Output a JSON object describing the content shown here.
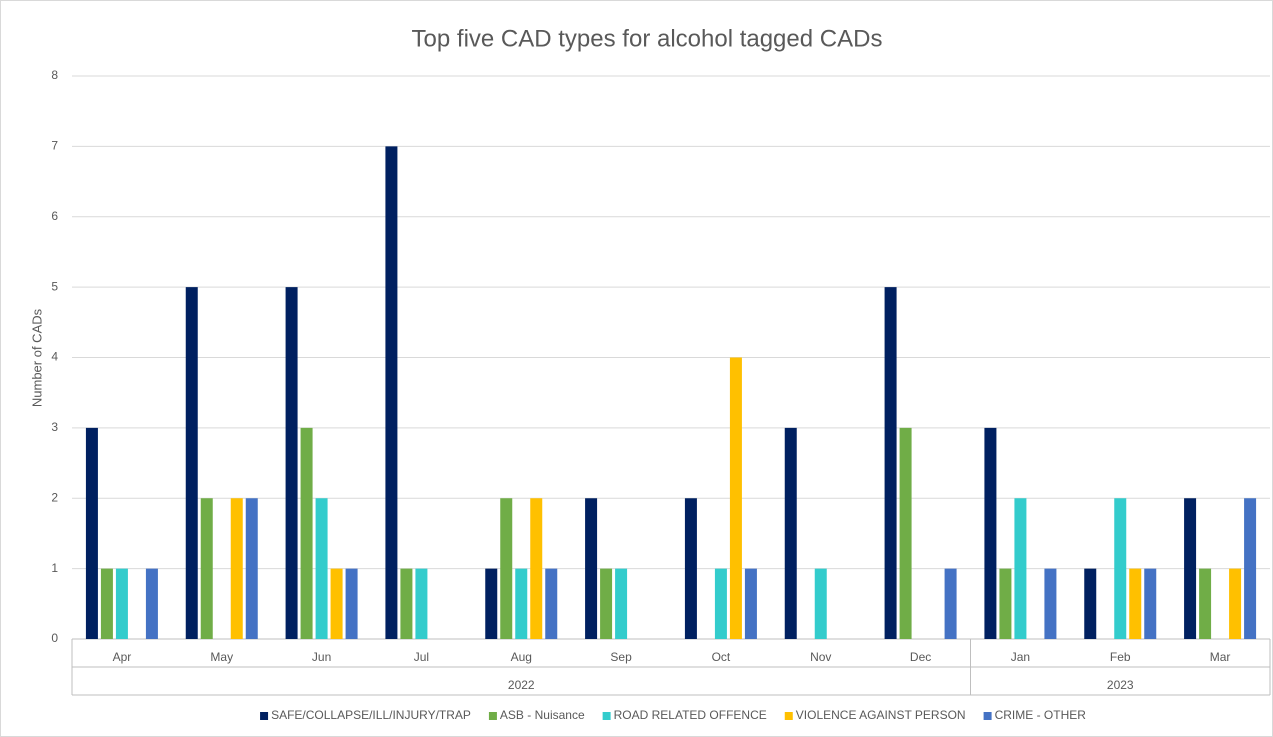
{
  "chart_data": {
    "type": "bar",
    "title": "Top five CAD types for alcohol tagged CADs",
    "y_label": "Number of CADs",
    "category_groups": [
      {
        "label": "2022",
        "categories": [
          "Apr",
          "May",
          "Jun",
          "Jul",
          "Aug",
          "Sep",
          "Oct",
          "Nov",
          "Dec"
        ]
      },
      {
        "label": "2023",
        "categories": [
          "Jan",
          "Feb",
          "Mar"
        ]
      }
    ],
    "series": [
      {
        "name": "SAFE/COLLAPSE/ILL/INJURY/TRAP",
        "color": "#002060",
        "values": [
          3,
          5,
          5,
          7,
          1,
          2,
          2,
          3,
          5,
          3,
          1,
          2
        ]
      },
      {
        "name": "ASB - Nuisance",
        "color": "#70ad47",
        "values": [
          1,
          2,
          3,
          1,
          2,
          1,
          0,
          0,
          3,
          1,
          0,
          1
        ]
      },
      {
        "name": "ROAD RELATED OFFENCE",
        "color": "#33cccc",
        "values": [
          1,
          0,
          2,
          1,
          1,
          1,
          1,
          1,
          0,
          2,
          2,
          0
        ]
      },
      {
        "name": "VIOLENCE AGAINST PERSON",
        "color": "#ffc000",
        "values": [
          0,
          2,
          1,
          0,
          2,
          0,
          4,
          0,
          0,
          0,
          1,
          1
        ]
      },
      {
        "name": "CRIME - OTHER",
        "color": "#4472c4",
        "values": [
          1,
          2,
          1,
          0,
          1,
          0,
          1,
          0,
          1,
          1,
          1,
          2
        ]
      }
    ],
    "ylim": [
      0,
      8
    ],
    "yticks": [
      0,
      1,
      2,
      3,
      4,
      5,
      6,
      7,
      8
    ],
    "grid": true,
    "legend": "bottom"
  }
}
